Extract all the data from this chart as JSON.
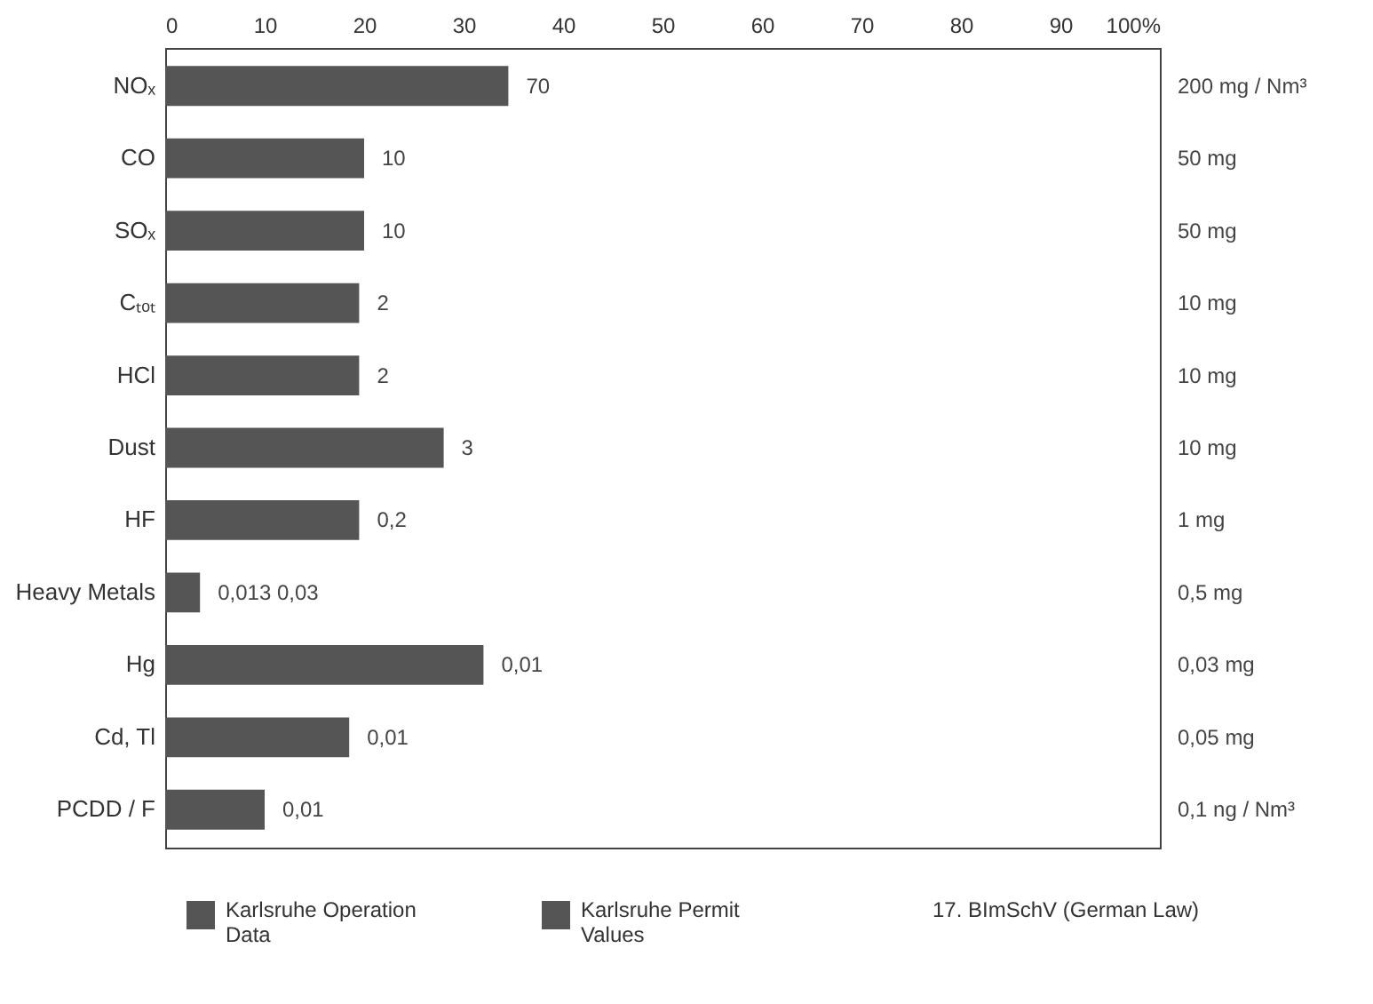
{
  "chart_data": {
    "type": "bar",
    "orientation": "horizontal",
    "categories": [
      "NOₓ",
      "CO",
      "SOₓ",
      "Cₜₒₜ",
      "HCl",
      "Dust",
      "HF",
      "Heavy Metals",
      "Hg",
      "Cd, Tl",
      "PCDD / F"
    ],
    "y2_categories": [
      "200 mg / Nm³",
      "50 mg",
      "50 mg",
      "10 mg",
      "10 mg",
      "10 mg",
      "1 mg",
      "0,5 mg",
      "0,03 mg",
      "0,05 mg",
      "0,1 ng / Nm³"
    ],
    "series": [
      {
        "color": "#555555",
        "values": [
          34.5,
          20,
          20,
          19.5,
          19.5,
          28,
          19.5,
          3.5,
          32,
          18.5,
          10
        ]
      }
    ],
    "value_labels": [
      "70",
      "10",
      "10",
      "2",
      "2",
      "3",
      "0,2",
      "0,013  0,03",
      "0,01",
      "0,01",
      "0,01"
    ],
    "xlim": [
      0,
      100
    ],
    "xticks": [
      0,
      10,
      20,
      30,
      40,
      50,
      60,
      70,
      80,
      90,
      {
        "value": 100,
        "label": "100%"
      }
    ],
    "grid": false,
    "annotations": [
      "Karlsruhe Operation Data",
      "Karlsruhe Permit Values",
      "17. BImSchV (German Law)"
    ]
  }
}
